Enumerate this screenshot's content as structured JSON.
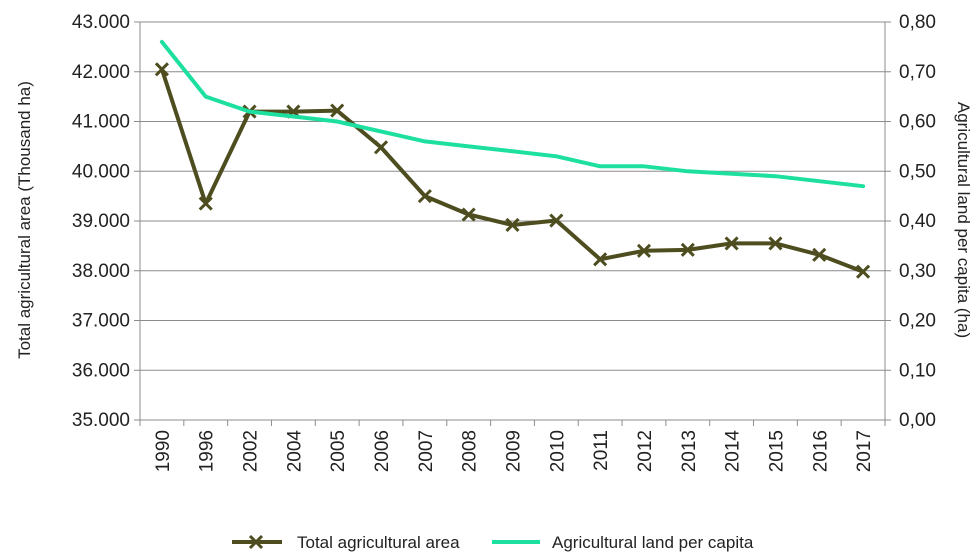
{
  "chart_data": {
    "type": "line",
    "categories": [
      "1990",
      "1996",
      "2002",
      "2004",
      "2005",
      "2006",
      "2007",
      "2008",
      "2009",
      "2010",
      "2011",
      "2012",
      "2013",
      "2014",
      "2015",
      "2016",
      "2017"
    ],
    "series": [
      {
        "name": "Total agricultural area",
        "axis": "left",
        "color": "#4d4d1f",
        "marker": "x",
        "values": [
          42050,
          39350,
          41200,
          41200,
          41220,
          40480,
          39500,
          39130,
          38920,
          39010,
          38230,
          38400,
          38420,
          38550,
          38550,
          38320,
          37980
        ]
      },
      {
        "name": "Agricultural land per capita",
        "axis": "right",
        "color": "#1de0a0",
        "marker": "none",
        "values": [
          0.76,
          0.65,
          0.62,
          0.61,
          0.6,
          0.58,
          0.56,
          0.55,
          0.54,
          0.53,
          0.51,
          0.51,
          0.5,
          0.495,
          0.49,
          0.48,
          0.47
        ]
      }
    ],
    "ylabel_left": "Total agricultural area (Thousand ha)",
    "ylabel_right": "Agricultural land per capita (ha)",
    "ylim_left": [
      35000,
      43000
    ],
    "ylim_right": [
      0,
      0.8
    ],
    "yticks_left": [
      "35.000",
      "36.000",
      "37.000",
      "38.000",
      "39.000",
      "40.000",
      "41.000",
      "42.000",
      "43.000"
    ],
    "yticks_right": [
      "0,00",
      "0,10",
      "0,20",
      "0,30",
      "0,40",
      "0,50",
      "0,60",
      "0,70",
      "0,80"
    ],
    "grid": true,
    "legend_position": "bottom"
  }
}
